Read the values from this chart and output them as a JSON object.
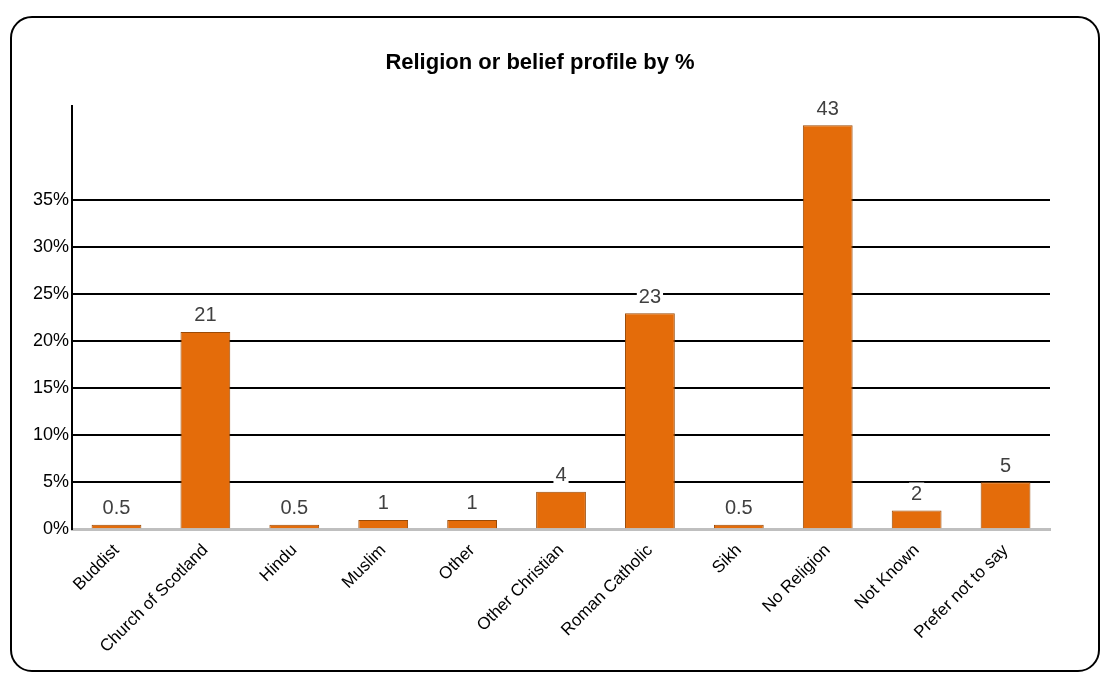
{
  "chart_data": {
    "type": "bar",
    "title": "Religion or belief profile by %",
    "categories": [
      "Buddist",
      "Church of Scotland",
      "Hindu",
      "Muslim",
      "Other",
      "Other Christian",
      "Roman Catholic",
      "Sikh",
      "No Religion",
      "Not Known",
      "Prefer not to say"
    ],
    "values": [
      0.5,
      21,
      0.5,
      1,
      1,
      4,
      23,
      0.5,
      43,
      2,
      5
    ],
    "color": "#e46c0a",
    "ylim": [
      0,
      45
    ],
    "yticks": [
      {
        "value": 0,
        "label": "0%"
      },
      {
        "value": 5,
        "label": "5%"
      },
      {
        "value": 10,
        "label": "10%"
      },
      {
        "value": 15,
        "label": "15%"
      },
      {
        "value": 20,
        "label": "20%"
      },
      {
        "value": 25,
        "label": "25%"
      },
      {
        "value": 30,
        "label": "30%"
      },
      {
        "value": 35,
        "label": "35%"
      }
    ],
    "grid": "y",
    "legend": false,
    "data_labels": true
  }
}
